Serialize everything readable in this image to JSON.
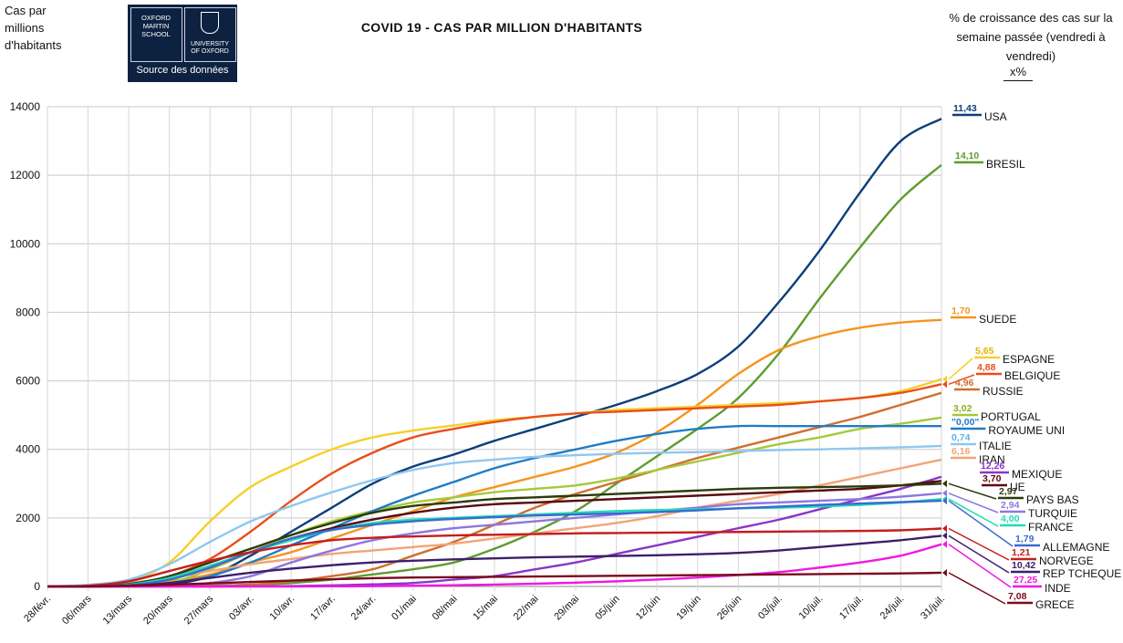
{
  "header": {
    "ylabel": "Cas par millions d'habitants",
    "title": "COVID 19 - CAS PAR MILLION D'HABITANTS",
    "growth_title": "% de croissance des cas sur la semaine passée (vendredi à vendredi)",
    "growth_unit": "x%",
    "logo_line1": "OXFORD MARTIN SCHOOL",
    "logo_line2": "UNIVERSITY OF OXFORD",
    "logo_caption": "Source des données"
  },
  "chart_data": {
    "type": "line",
    "title": "COVID 19 - CAS PAR MILLION D'HABITANTS",
    "ylabel": "Cas par millions d'habitants",
    "ylim": [
      0,
      14000
    ],
    "yticks": [
      0,
      2000,
      4000,
      6000,
      8000,
      10000,
      12000,
      14000
    ],
    "grid": true,
    "x": [
      "28/févr.",
      "06/mars",
      "13/mars",
      "20/mars",
      "27/mars",
      "03/avr.",
      "10/avr.",
      "17/avr.",
      "24/avr.",
      "01/mai",
      "08/mai",
      "15/mai",
      "22/mai",
      "29/mai",
      "05/juin",
      "12/juin",
      "19/juin",
      "26/juin",
      "03/juil.",
      "10/juil.",
      "17/juil.",
      "24/juil.",
      "31/juil."
    ],
    "series": [
      {
        "name": "USA",
        "growth": "11,43",
        "color": "#0b3f7a",
        "label_color": "#0b3f7a",
        "values": [
          0,
          0,
          5,
          50,
          300,
          900,
          1600,
          2300,
          3000,
          3500,
          3850,
          4250,
          4600,
          4950,
          5300,
          5700,
          6200,
          7000,
          8300,
          9800,
          11500,
          13000,
          13650
        ]
      },
      {
        "name": "BRESIL",
        "growth": "14,10",
        "color": "#5d9c2f",
        "label_color": "#5d9c2f",
        "values": [
          0,
          0,
          0,
          5,
          20,
          50,
          100,
          200,
          350,
          500,
          700,
          1100,
          1600,
          2200,
          3000,
          3800,
          4600,
          5500,
          6800,
          8400,
          9900,
          11300,
          12300
        ]
      },
      {
        "name": "SUEDE",
        "growth": "1,70",
        "color": "#f4951e",
        "label_color": "#f4951e",
        "values": [
          0,
          5,
          50,
          150,
          350,
          700,
          1000,
          1400,
          1800,
          2200,
          2600,
          2900,
          3200,
          3500,
          3900,
          4500,
          5300,
          6200,
          6900,
          7300,
          7550,
          7700,
          7780
        ]
      },
      {
        "name": "ESPAGNE",
        "growth": "5,65",
        "color": "#f7cf2a",
        "label_color": "#e6b400",
        "values": [
          0,
          5,
          150,
          700,
          1900,
          2900,
          3500,
          4000,
          4350,
          4550,
          4700,
          4850,
          4950,
          5050,
          5150,
          5200,
          5250,
          5300,
          5350,
          5400,
          5500,
          5700,
          6050
        ]
      },
      {
        "name": "BELGIQUE",
        "growth": "4,88",
        "color": "#ea4e1c",
        "label_color": "#ea4e1c",
        "values": [
          0,
          5,
          80,
          300,
          800,
          1600,
          2500,
          3300,
          3900,
          4350,
          4600,
          4800,
          4950,
          5050,
          5100,
          5150,
          5200,
          5250,
          5300,
          5400,
          5500,
          5650,
          5900
        ]
      },
      {
        "name": "RUSSIE",
        "growth": "4,96",
        "color": "#cf6f2e",
        "label_color": "#cf6f2e",
        "values": [
          0,
          0,
          0,
          5,
          20,
          50,
          150,
          300,
          500,
          900,
          1300,
          1800,
          2300,
          2700,
          3050,
          3400,
          3750,
          4050,
          4350,
          4650,
          4950,
          5300,
          5650
        ]
      },
      {
        "name": "PORTUGAL",
        "growth": "3,02",
        "color": "#a5c93b",
        "label_color": "#8dae22",
        "values": [
          0,
          0,
          10,
          100,
          500,
          1000,
          1500,
          1900,
          2200,
          2450,
          2600,
          2750,
          2850,
          2950,
          3150,
          3400,
          3650,
          3900,
          4150,
          4350,
          4600,
          4750,
          4930
        ]
      },
      {
        "name": "ROYAUME UNI",
        "growth": "\"0,00\"",
        "color": "#1f7cc5",
        "label_color": "#1f7cc5",
        "values": [
          0,
          5,
          15,
          100,
          300,
          700,
          1200,
          1700,
          2200,
          2650,
          3050,
          3450,
          3750,
          4000,
          4250,
          4450,
          4600,
          4680,
          4680,
          4680,
          4680,
          4680,
          4680
        ]
      },
      {
        "name": "ITALIE",
        "growth": "0,74",
        "color": "#8fc7ef",
        "label_color": "#5fb0e6",
        "values": [
          0,
          50,
          200,
          650,
          1300,
          1900,
          2350,
          2750,
          3100,
          3400,
          3600,
          3700,
          3780,
          3830,
          3870,
          3900,
          3920,
          3950,
          3980,
          4000,
          4030,
          4060,
          4100
        ]
      },
      {
        "name": "IRAN",
        "growth": "6,16",
        "color": "#f2a477",
        "label_color": "#f2a477",
        "values": [
          0,
          20,
          100,
          250,
          450,
          650,
          800,
          950,
          1050,
          1150,
          1250,
          1400,
          1550,
          1700,
          1850,
          2050,
          2300,
          2500,
          2700,
          2950,
          3200,
          3450,
          3700
        ]
      },
      {
        "name": "MEXIQUE",
        "growth": "12,26",
        "color": "#8a36c9",
        "label_color": "#8a36c9",
        "values": [
          0,
          0,
          0,
          0,
          0,
          5,
          10,
          30,
          60,
          100,
          200,
          300,
          500,
          700,
          950,
          1200,
          1450,
          1700,
          1950,
          2250,
          2550,
          2850,
          3200
        ]
      },
      {
        "name": "UE",
        "growth": "3,70",
        "color": "#5a0a12",
        "label_color": "#5a0a12",
        "values": [
          0,
          5,
          60,
          250,
          600,
          1000,
          1400,
          1700,
          1950,
          2150,
          2300,
          2400,
          2450,
          2500,
          2550,
          2600,
          2650,
          2700,
          2750,
          2800,
          2850,
          2950,
          3080
        ]
      },
      {
        "name": "PAYS BAS",
        "growth": "2,97",
        "color": "#2b3b0a",
        "label_color": "#2b3b0a",
        "values": [
          0,
          5,
          70,
          300,
          700,
          1100,
          1500,
          1850,
          2150,
          2350,
          2450,
          2550,
          2600,
          2650,
          2700,
          2750,
          2800,
          2850,
          2880,
          2900,
          2920,
          2950,
          3000
        ]
      },
      {
        "name": "TURQUIE",
        "growth": "2,94",
        "color": "#8d77e0",
        "label_color": "#8d77e0",
        "values": [
          0,
          0,
          0,
          10,
          100,
          300,
          700,
          1050,
          1350,
          1550,
          1700,
          1800,
          1900,
          2000,
          2100,
          2200,
          2300,
          2400,
          2450,
          2500,
          2550,
          2620,
          2720
        ]
      },
      {
        "name": "FRANCE",
        "growth": "4,00",
        "color": "#1fdcb4",
        "label_color": "#1fdcb4",
        "values": [
          0,
          5,
          50,
          250,
          600,
          1000,
          1350,
          1650,
          1850,
          1950,
          2000,
          2050,
          2100,
          2150,
          2200,
          2230,
          2250,
          2280,
          2300,
          2330,
          2380,
          2450,
          2550
        ]
      },
      {
        "name": "ALLEMAGNE",
        "growth": "1,79",
        "color": "#3a6bcf",
        "label_color": "#3a6bcf",
        "values": [
          0,
          5,
          40,
          200,
          550,
          1000,
          1400,
          1650,
          1800,
          1900,
          1970,
          2020,
          2070,
          2100,
          2130,
          2170,
          2220,
          2280,
          2330,
          2380,
          2420,
          2460,
          2500
        ]
      },
      {
        "name": "NORVEGE",
        "growth": "1,21",
        "color": "#c41d1d",
        "label_color": "#c41d1d",
        "values": [
          0,
          20,
          150,
          450,
          750,
          1000,
          1200,
          1350,
          1420,
          1460,
          1490,
          1510,
          1530,
          1550,
          1560,
          1570,
          1580,
          1590,
          1600,
          1610,
          1620,
          1640,
          1690
        ]
      },
      {
        "name": "REP TCHEQUE",
        "growth": "10,42",
        "color": "#3d1f6b",
        "label_color": "#3d1f6b",
        "values": [
          0,
          0,
          20,
          100,
          250,
          400,
          520,
          620,
          700,
          750,
          790,
          820,
          850,
          870,
          890,
          910,
          940,
          980,
          1050,
          1150,
          1250,
          1350,
          1480
        ]
      },
      {
        "name": "INDE",
        "growth": "27,25",
        "color": "#f218e0",
        "label_color": "#f218e0",
        "values": [
          0,
          0,
          0,
          0,
          0,
          0,
          0,
          5,
          10,
          20,
          35,
          55,
          80,
          110,
          150,
          200,
          260,
          330,
          420,
          550,
          700,
          900,
          1230
        ]
      },
      {
        "name": "GRECE",
        "growth": "7,08",
        "color": "#7a0b1d",
        "label_color": "#7a0b1d",
        "values": [
          0,
          0,
          20,
          50,
          90,
          130,
          170,
          210,
          240,
          260,
          270,
          280,
          290,
          300,
          310,
          320,
          330,
          340,
          350,
          360,
          370,
          380,
          400
        ]
      }
    ]
  }
}
